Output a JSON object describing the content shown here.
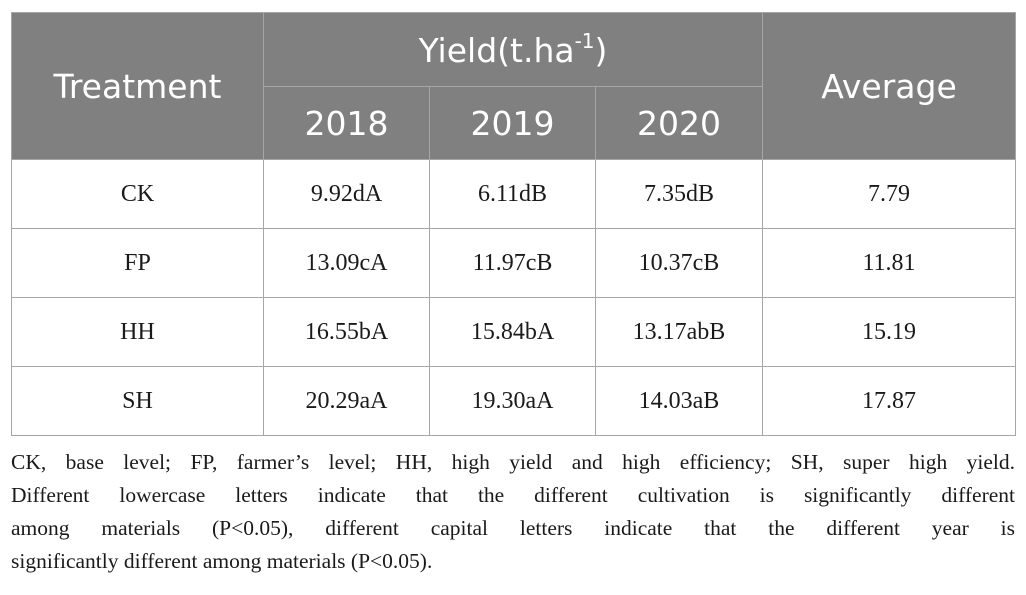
{
  "table": {
    "headers": {
      "treatment": "Treatment",
      "yield_main": "Yield(t.ha",
      "yield_sup": "-1",
      "yield_close": ")",
      "average": "Average",
      "years": [
        "2018",
        "2019",
        "2020"
      ]
    },
    "rows": [
      {
        "treatment": "CK",
        "y2018": "9.92dA",
        "y2019": "6.11dB",
        "y2020": "7.35dB",
        "average": "7.79"
      },
      {
        "treatment": "FP",
        "y2018": "13.09cA",
        "y2019": "11.97cB",
        "y2020": "10.37cB",
        "average": "11.81"
      },
      {
        "treatment": "HH",
        "y2018": "16.55bA",
        "y2019": "15.84bA",
        "y2020": "13.17abB",
        "average": "15.19"
      },
      {
        "treatment": "SH",
        "y2018": "20.29aA",
        "y2019": "19.30aA",
        "y2020": "14.03aB",
        "average": "17.87"
      }
    ]
  },
  "footnote": {
    "lines": [
      "CK, base level; FP, farmer’s level; HH, high yield and high efficiency; SH, super high yield.",
      "Different lowercase letters indicate that the different cultivation is significantly different",
      "among materials (P<0.05), different capital letters indicate that the different year is",
      "significantly different among materials (P<0.05)."
    ]
  }
}
